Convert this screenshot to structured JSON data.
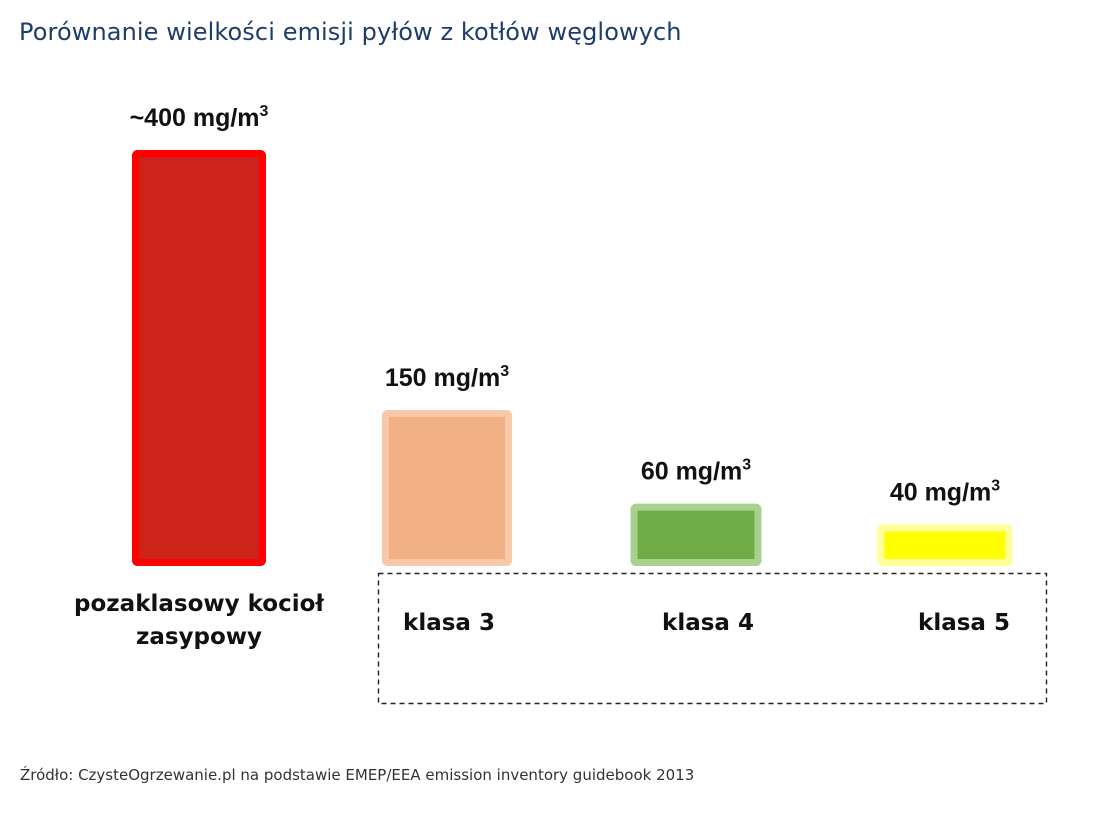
{
  "title": "Porównanie wielkości emisji pyłów z kotłów węglowych",
  "source": "Źródło: CzysteOgrzewanie.pl na podstawie EMEP/EEA emission inventory guidebook 2013",
  "chart_data": {
    "type": "bar",
    "title": "Porównanie wielkości emisji pyłów z kotłów węglowych",
    "unit": "mg/m3",
    "categories": [
      [
        "pozaklasowy kocioł",
        "zasypowy"
      ],
      [
        "klasa 3"
      ],
      [
        "klasa 4"
      ],
      [
        "klasa 5"
      ]
    ],
    "values": [
      400,
      150,
      60,
      40
    ],
    "data_labels": [
      {
        "prefix": "~400 mg/m",
        "sup": "3"
      },
      {
        "prefix": "150 mg/m",
        "sup": "3"
      },
      {
        "prefix": "60 mg/m",
        "sup": "3"
      },
      {
        "prefix": "40 mg/m",
        "sup": "3"
      }
    ],
    "colors": [
      {
        "fill": "#cc2418",
        "border": "#ff0000"
      },
      {
        "fill": "#f2b085",
        "border": "#f7c9a9"
      },
      {
        "fill": "#6fac46",
        "border": "#a9d18e"
      },
      {
        "fill": "#ffff00",
        "border": "#ffff99"
      }
    ],
    "grouped_categories_note": "",
    "ylim": [
      0,
      400
    ]
  }
}
